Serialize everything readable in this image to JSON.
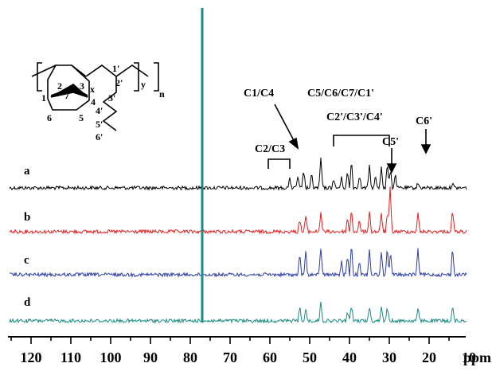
{
  "chart_data": {
    "type": "line",
    "title": "",
    "xlabel": "ppm",
    "ylabel": "",
    "xlim": [
      125,
      4
    ],
    "x_axis_reversed": true,
    "x_ticks": [
      "120",
      "110",
      "100",
      "90",
      "80",
      "70",
      "60",
      "50",
      "40",
      "30",
      "20",
      "10"
    ],
    "grid": false,
    "legend": "none",
    "series": [
      {
        "name": "a",
        "color": "#000000",
        "peaks": [
          [
            77.0,
            1.0
          ],
          [
            55.0,
            0.22
          ],
          [
            53.0,
            0.28
          ],
          [
            51.5,
            0.45
          ],
          [
            49.5,
            0.35
          ],
          [
            47.2,
            0.75
          ],
          [
            44.0,
            0.22
          ],
          [
            42.0,
            0.25
          ],
          [
            40.5,
            0.4
          ],
          [
            39.5,
            0.7
          ],
          [
            37.5,
            0.35
          ],
          [
            35.0,
            0.55
          ],
          [
            33.5,
            0.3
          ],
          [
            32.0,
            0.55
          ],
          [
            30.5,
            0.62
          ],
          [
            29.7,
            0.5
          ],
          [
            28.5,
            0.35
          ],
          [
            22.8,
            0.12
          ],
          [
            14.1,
            0.12
          ]
        ]
      },
      {
        "name": "b",
        "color": "#e41f1f",
        "peaks": [
          [
            77.0,
            1.0
          ],
          [
            52.5,
            0.3
          ],
          [
            51.0,
            0.35
          ],
          [
            47.2,
            0.45
          ],
          [
            40.5,
            0.3
          ],
          [
            39.5,
            0.5
          ],
          [
            37.5,
            0.25
          ],
          [
            35.0,
            0.45
          ],
          [
            32.0,
            0.4
          ],
          [
            30.5,
            0.4
          ],
          [
            29.8,
            1.0
          ],
          [
            22.8,
            0.4
          ],
          [
            14.1,
            0.5
          ]
        ]
      },
      {
        "name": "c",
        "color": "#2c3ca8",
        "peaks": [
          [
            77.0,
            1.0
          ],
          [
            52.5,
            0.4
          ],
          [
            51.0,
            0.45
          ],
          [
            47.2,
            0.55
          ],
          [
            42.0,
            0.25
          ],
          [
            40.5,
            0.35
          ],
          [
            39.5,
            0.6
          ],
          [
            37.5,
            0.3
          ],
          [
            35.0,
            0.5
          ],
          [
            32.0,
            0.45
          ],
          [
            30.5,
            0.55
          ],
          [
            29.7,
            0.45
          ],
          [
            22.8,
            0.5
          ],
          [
            14.1,
            0.55
          ]
        ]
      },
      {
        "name": "d",
        "color": "#1a8c82",
        "peaks": [
          [
            77.0,
            1.0
          ],
          [
            52.5,
            0.3
          ],
          [
            51.0,
            0.25
          ],
          [
            47.2,
            0.4
          ],
          [
            40.5,
            0.2
          ],
          [
            39.5,
            0.35
          ],
          [
            35.0,
            0.3
          ],
          [
            32.0,
            0.3
          ],
          [
            30.5,
            0.3
          ],
          [
            22.8,
            0.25
          ],
          [
            14.1,
            0.3
          ]
        ]
      }
    ],
    "annotations": [
      {
        "label": "C1/C4",
        "target_ppm": 47.2
      },
      {
        "label": "C5/C6/C7/C1'",
        "bracket_ppm": [
          43.5,
          28.5
        ]
      },
      {
        "label": "C2'/C3'/C4'"
      },
      {
        "label": "C2/C3",
        "bracket_ppm": [
          55.5,
          49.5
        ]
      },
      {
        "label": "C5'",
        "target_ppm": 22.8
      },
      {
        "label": "C6'",
        "target_ppm": 14.1
      }
    ],
    "structure_labels": [
      "2",
      "3",
      "x",
      "1'",
      "2'",
      "y",
      "n",
      "7",
      "1",
      "4",
      "3'",
      "6",
      "5",
      "4'",
      "5'",
      "6'"
    ]
  }
}
